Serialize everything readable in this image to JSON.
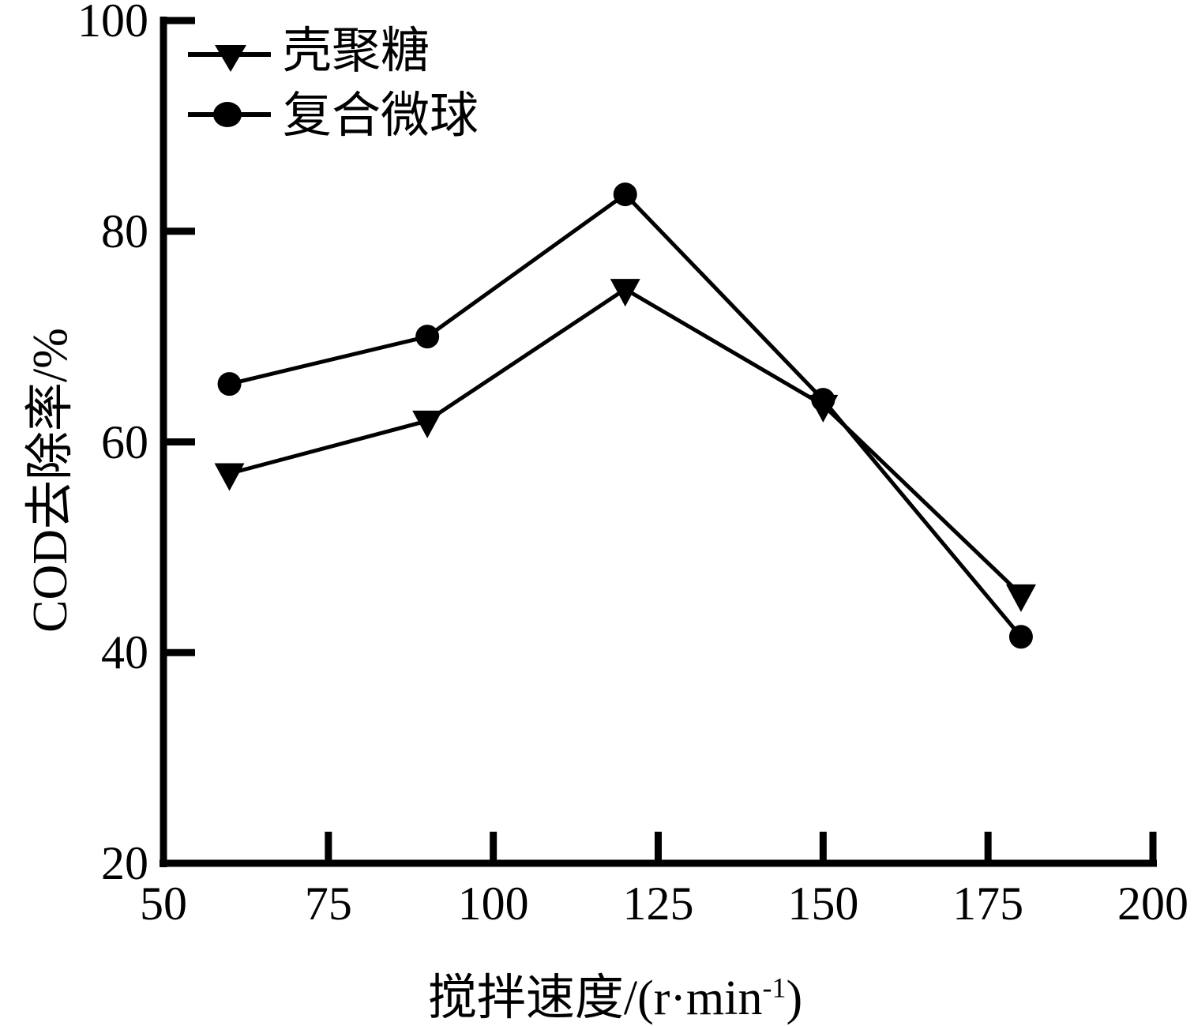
{
  "figure": {
    "background": "#ffffff",
    "ink_color": "#000000"
  },
  "chart_data": {
    "type": "line",
    "title": "",
    "ylabel": "COD去除率/%",
    "xlabel": {
      "text": "搅拌速度/(r·min",
      "superscript": "-1",
      "suffix": ")"
    },
    "x": [
      60,
      90,
      120,
      150,
      180
    ],
    "series": [
      {
        "name": "壳聚糖",
        "marker": "triangle-down",
        "values": [
          57,
          62,
          74.5,
          63.5,
          45.5
        ]
      },
      {
        "name": "复合微球",
        "marker": "circle",
        "values": [
          65.5,
          70,
          83.5,
          64,
          41.5
        ]
      }
    ],
    "xlim": [
      50,
      200
    ],
    "ylim": [
      20,
      100
    ],
    "x_ticks": [
      50,
      75,
      100,
      125,
      150,
      175,
      200
    ],
    "y_ticks": [
      20,
      40,
      60,
      80,
      100
    ],
    "legend_position": "top-left",
    "grid": false
  }
}
